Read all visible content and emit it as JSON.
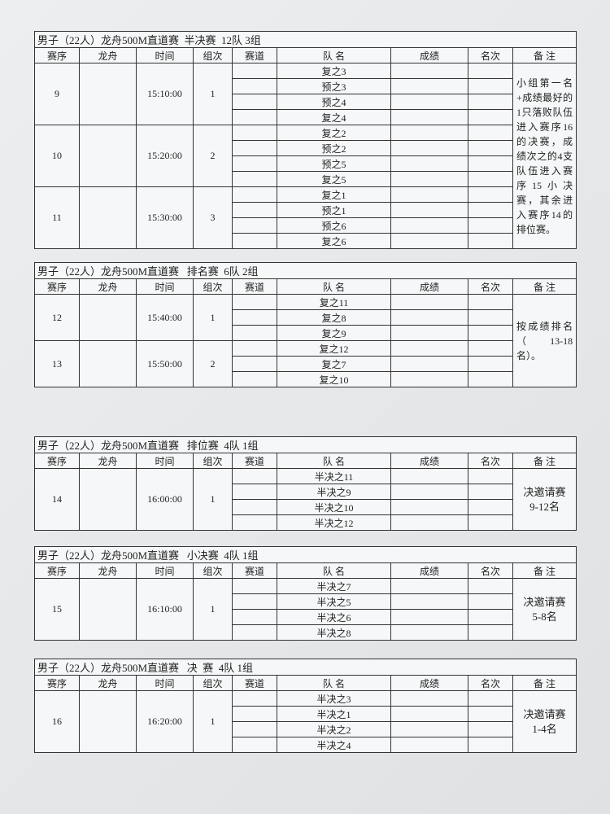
{
  "tables": [
    {
      "title": "男子（22人）龙舟500M直道赛  半决赛  12队 3组",
      "headers": [
        "赛序",
        "龙舟",
        "时间",
        "组次",
        "赛道",
        "队 名",
        "成绩",
        "名次",
        "备 注"
      ],
      "groups": [
        {
          "seq": "9",
          "time": "15:10:00",
          "group": "1",
          "teams": [
            "复之3",
            "预之3",
            "预之4",
            "复之4"
          ]
        },
        {
          "seq": "10",
          "time": "15:20:00",
          "group": "2",
          "teams": [
            "复之2",
            "预之2",
            "预之5",
            "复之5"
          ]
        },
        {
          "seq": "11",
          "time": "15:30:00",
          "group": "3",
          "teams": [
            "复之1",
            "预之1",
            "预之6",
            "复之6"
          ]
        }
      ],
      "note": [
        "小组第一名+成绩最好的1只落败队伍进入赛序16的决赛，成绩次之的4支队伍进入赛序15小决赛，其余进入赛序14的排位赛。"
      ]
    },
    {
      "title": "男子（22人）龙舟500M直道赛   排名赛  6队 2组",
      "headers": [
        "赛序",
        "龙舟",
        "时间",
        "组次",
        "赛道",
        "队 名",
        "成绩",
        "名次",
        "备 注"
      ],
      "groups": [
        {
          "seq": "12",
          "time": "15:40:00",
          "group": "1",
          "teams": [
            "复之11",
            "复之8",
            "复之9"
          ]
        },
        {
          "seq": "13",
          "time": "15:50:00",
          "group": "2",
          "teams": [
            "复之12",
            "复之7",
            "复之10"
          ]
        }
      ],
      "note": [
        "按成绩排名（13-18名）。"
      ]
    },
    {
      "title": "男子（22人）龙舟500M直道赛   排位赛  4队 1组",
      "headers": [
        "赛序",
        "龙舟",
        "时间",
        "组次",
        "赛道",
        "队 名",
        "成绩",
        "名次",
        "备 注"
      ],
      "groups": [
        {
          "seq": "14",
          "time": "16:00:00",
          "group": "1",
          "teams": [
            "半决之11",
            "半决之9",
            "半决之10",
            "半决之12"
          ]
        }
      ],
      "note": [
        "决邀请赛",
        "9-12名"
      ]
    },
    {
      "title": "男子（22人）龙舟500M直道赛   小决赛  4队 1组",
      "headers": [
        "赛序",
        "龙舟",
        "时间",
        "组次",
        "赛道",
        "队 名",
        "成绩",
        "名次",
        "备 注"
      ],
      "groups": [
        {
          "seq": "15",
          "time": "16:10:00",
          "group": "1",
          "teams": [
            "半决之7",
            "半决之5",
            "半决之6",
            "半决之8"
          ]
        }
      ],
      "note": [
        "决邀请赛",
        "5-8名"
      ]
    },
    {
      "title": "男子（22人）龙舟500M直道赛   决  赛  4队 1组",
      "headers": [
        "赛序",
        "龙舟",
        "时间",
        "组次",
        "赛道",
        "队 名",
        "成绩",
        "名次",
        "备 注"
      ],
      "groups": [
        {
          "seq": "16",
          "time": "16:20:00",
          "group": "1",
          "teams": [
            "半决之3",
            "半决之1",
            "半决之2",
            "半决之4"
          ]
        }
      ],
      "note": [
        "决邀请赛",
        "1-4名"
      ]
    }
  ]
}
